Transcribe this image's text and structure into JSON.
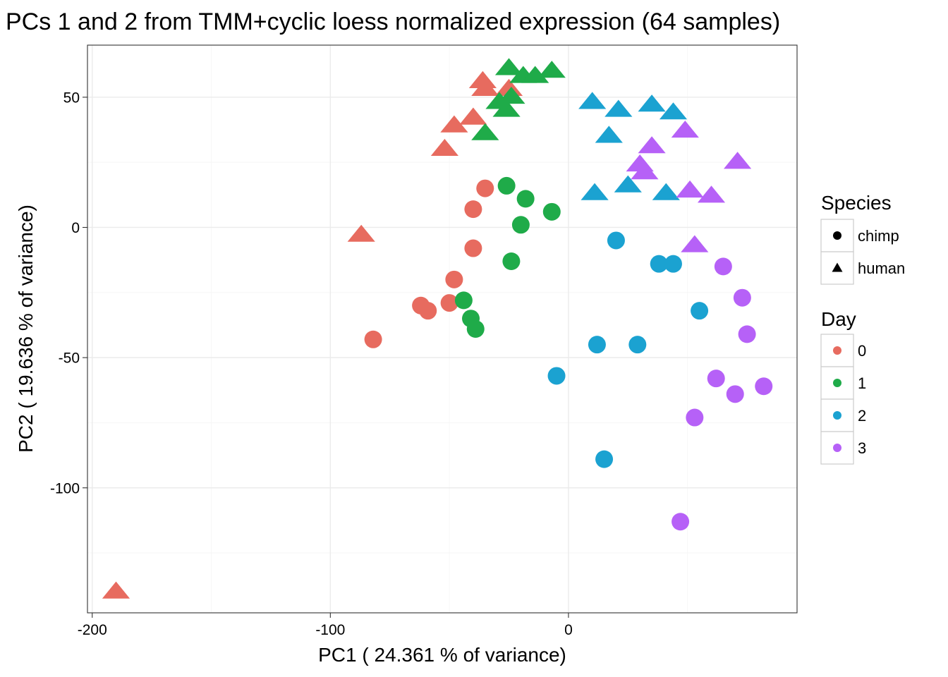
{
  "chart_data": {
    "type": "scatter",
    "title": "PCs 1 and 2 from TMM+cyclic loess normalized expression (64 samples)",
    "xlabel": "PC1 ( 24.361 % of variance)",
    "ylabel": "PC2 ( 19.636 % of variance)",
    "xlim": [
      -202,
      96
    ],
    "ylim": [
      -148,
      70
    ],
    "x_ticks": [
      -200,
      -100,
      0
    ],
    "y_ticks": [
      50,
      0,
      -50,
      -100
    ],
    "x_tick_labels": [
      "-200",
      "-100",
      "0"
    ],
    "y_tick_labels": [
      "50",
      "0",
      "-50",
      "-100"
    ],
    "grid": true,
    "legend_position": "right",
    "legends": {
      "species": {
        "title": "Species",
        "items": [
          {
            "label": "chimp",
            "shape": "circle"
          },
          {
            "label": "human",
            "shape": "triangle"
          }
        ]
      },
      "day": {
        "title": "Day",
        "items": [
          {
            "label": "0",
            "color": "#E76B5F"
          },
          {
            "label": "1",
            "color": "#1FAB49"
          },
          {
            "label": "2",
            "color": "#1BA2D1"
          },
          {
            "label": "3",
            "color": "#B661F7"
          }
        ]
      }
    },
    "colors": {
      "0": "#E76B5F",
      "1": "#1FAB49",
      "2": "#1BA2D1",
      "3": "#B661F7"
    },
    "series": [
      {
        "name": "Day 0 chimp",
        "day": "0",
        "species": "chimp",
        "points": [
          [
            -35,
            15
          ],
          [
            -40,
            7
          ],
          [
            -40,
            -8
          ],
          [
            -48,
            -20
          ],
          [
            -62,
            -30
          ],
          [
            -59,
            -32
          ],
          [
            -50,
            -29
          ],
          [
            -82,
            -43
          ]
        ]
      },
      {
        "name": "Day 0 human",
        "day": "0",
        "species": "human",
        "points": [
          [
            -36,
            57
          ],
          [
            -35,
            54
          ],
          [
            -25,
            54
          ],
          [
            -40,
            43
          ],
          [
            -48,
            40
          ],
          [
            -52,
            31
          ],
          [
            -87,
            -2
          ],
          [
            -190,
            -139
          ]
        ]
      },
      {
        "name": "Day 1 chimp",
        "day": "1",
        "species": "chimp",
        "points": [
          [
            -26,
            16
          ],
          [
            -18,
            11
          ],
          [
            -7,
            6
          ],
          [
            -20,
            1
          ],
          [
            -24,
            -13
          ],
          [
            -44,
            -28
          ],
          [
            -41,
            -35
          ],
          [
            -39,
            -39
          ]
        ]
      },
      {
        "name": "Day 1 human",
        "day": "1",
        "species": "human",
        "points": [
          [
            -25,
            62
          ],
          [
            -19,
            59
          ],
          [
            -14,
            59
          ],
          [
            -7,
            61
          ],
          [
            -29,
            49
          ],
          [
            -24,
            51
          ],
          [
            -26,
            46
          ],
          [
            -35,
            37
          ]
        ]
      },
      {
        "name": "Day 2 chimp",
        "day": "2",
        "species": "chimp",
        "points": [
          [
            20,
            -5
          ],
          [
            38,
            -14
          ],
          [
            44,
            -14
          ],
          [
            55,
            -32
          ],
          [
            12,
            -45
          ],
          [
            29,
            -45
          ],
          [
            -5,
            -57
          ],
          [
            15,
            -89
          ]
        ]
      },
      {
        "name": "Day 2 human",
        "day": "2",
        "species": "human",
        "points": [
          [
            10,
            49
          ],
          [
            21,
            46
          ],
          [
            35,
            48
          ],
          [
            44,
            45
          ],
          [
            17,
            36
          ],
          [
            11,
            14
          ],
          [
            25,
            17
          ],
          [
            41,
            14
          ]
        ]
      },
      {
        "name": "Day 3 chimp",
        "day": "3",
        "species": "chimp",
        "points": [
          [
            65,
            -15
          ],
          [
            73,
            -27
          ],
          [
            75,
            -41
          ],
          [
            62,
            -58
          ],
          [
            70,
            -64
          ],
          [
            82,
            -61
          ],
          [
            53,
            -73
          ],
          [
            47,
            -113
          ]
        ]
      },
      {
        "name": "Day 3 human",
        "day": "3",
        "species": "human",
        "points": [
          [
            49,
            38
          ],
          [
            35,
            32
          ],
          [
            30,
            25
          ],
          [
            32,
            22
          ],
          [
            51,
            15
          ],
          [
            60,
            13
          ],
          [
            71,
            26
          ],
          [
            53,
            -6
          ]
        ]
      }
    ]
  }
}
